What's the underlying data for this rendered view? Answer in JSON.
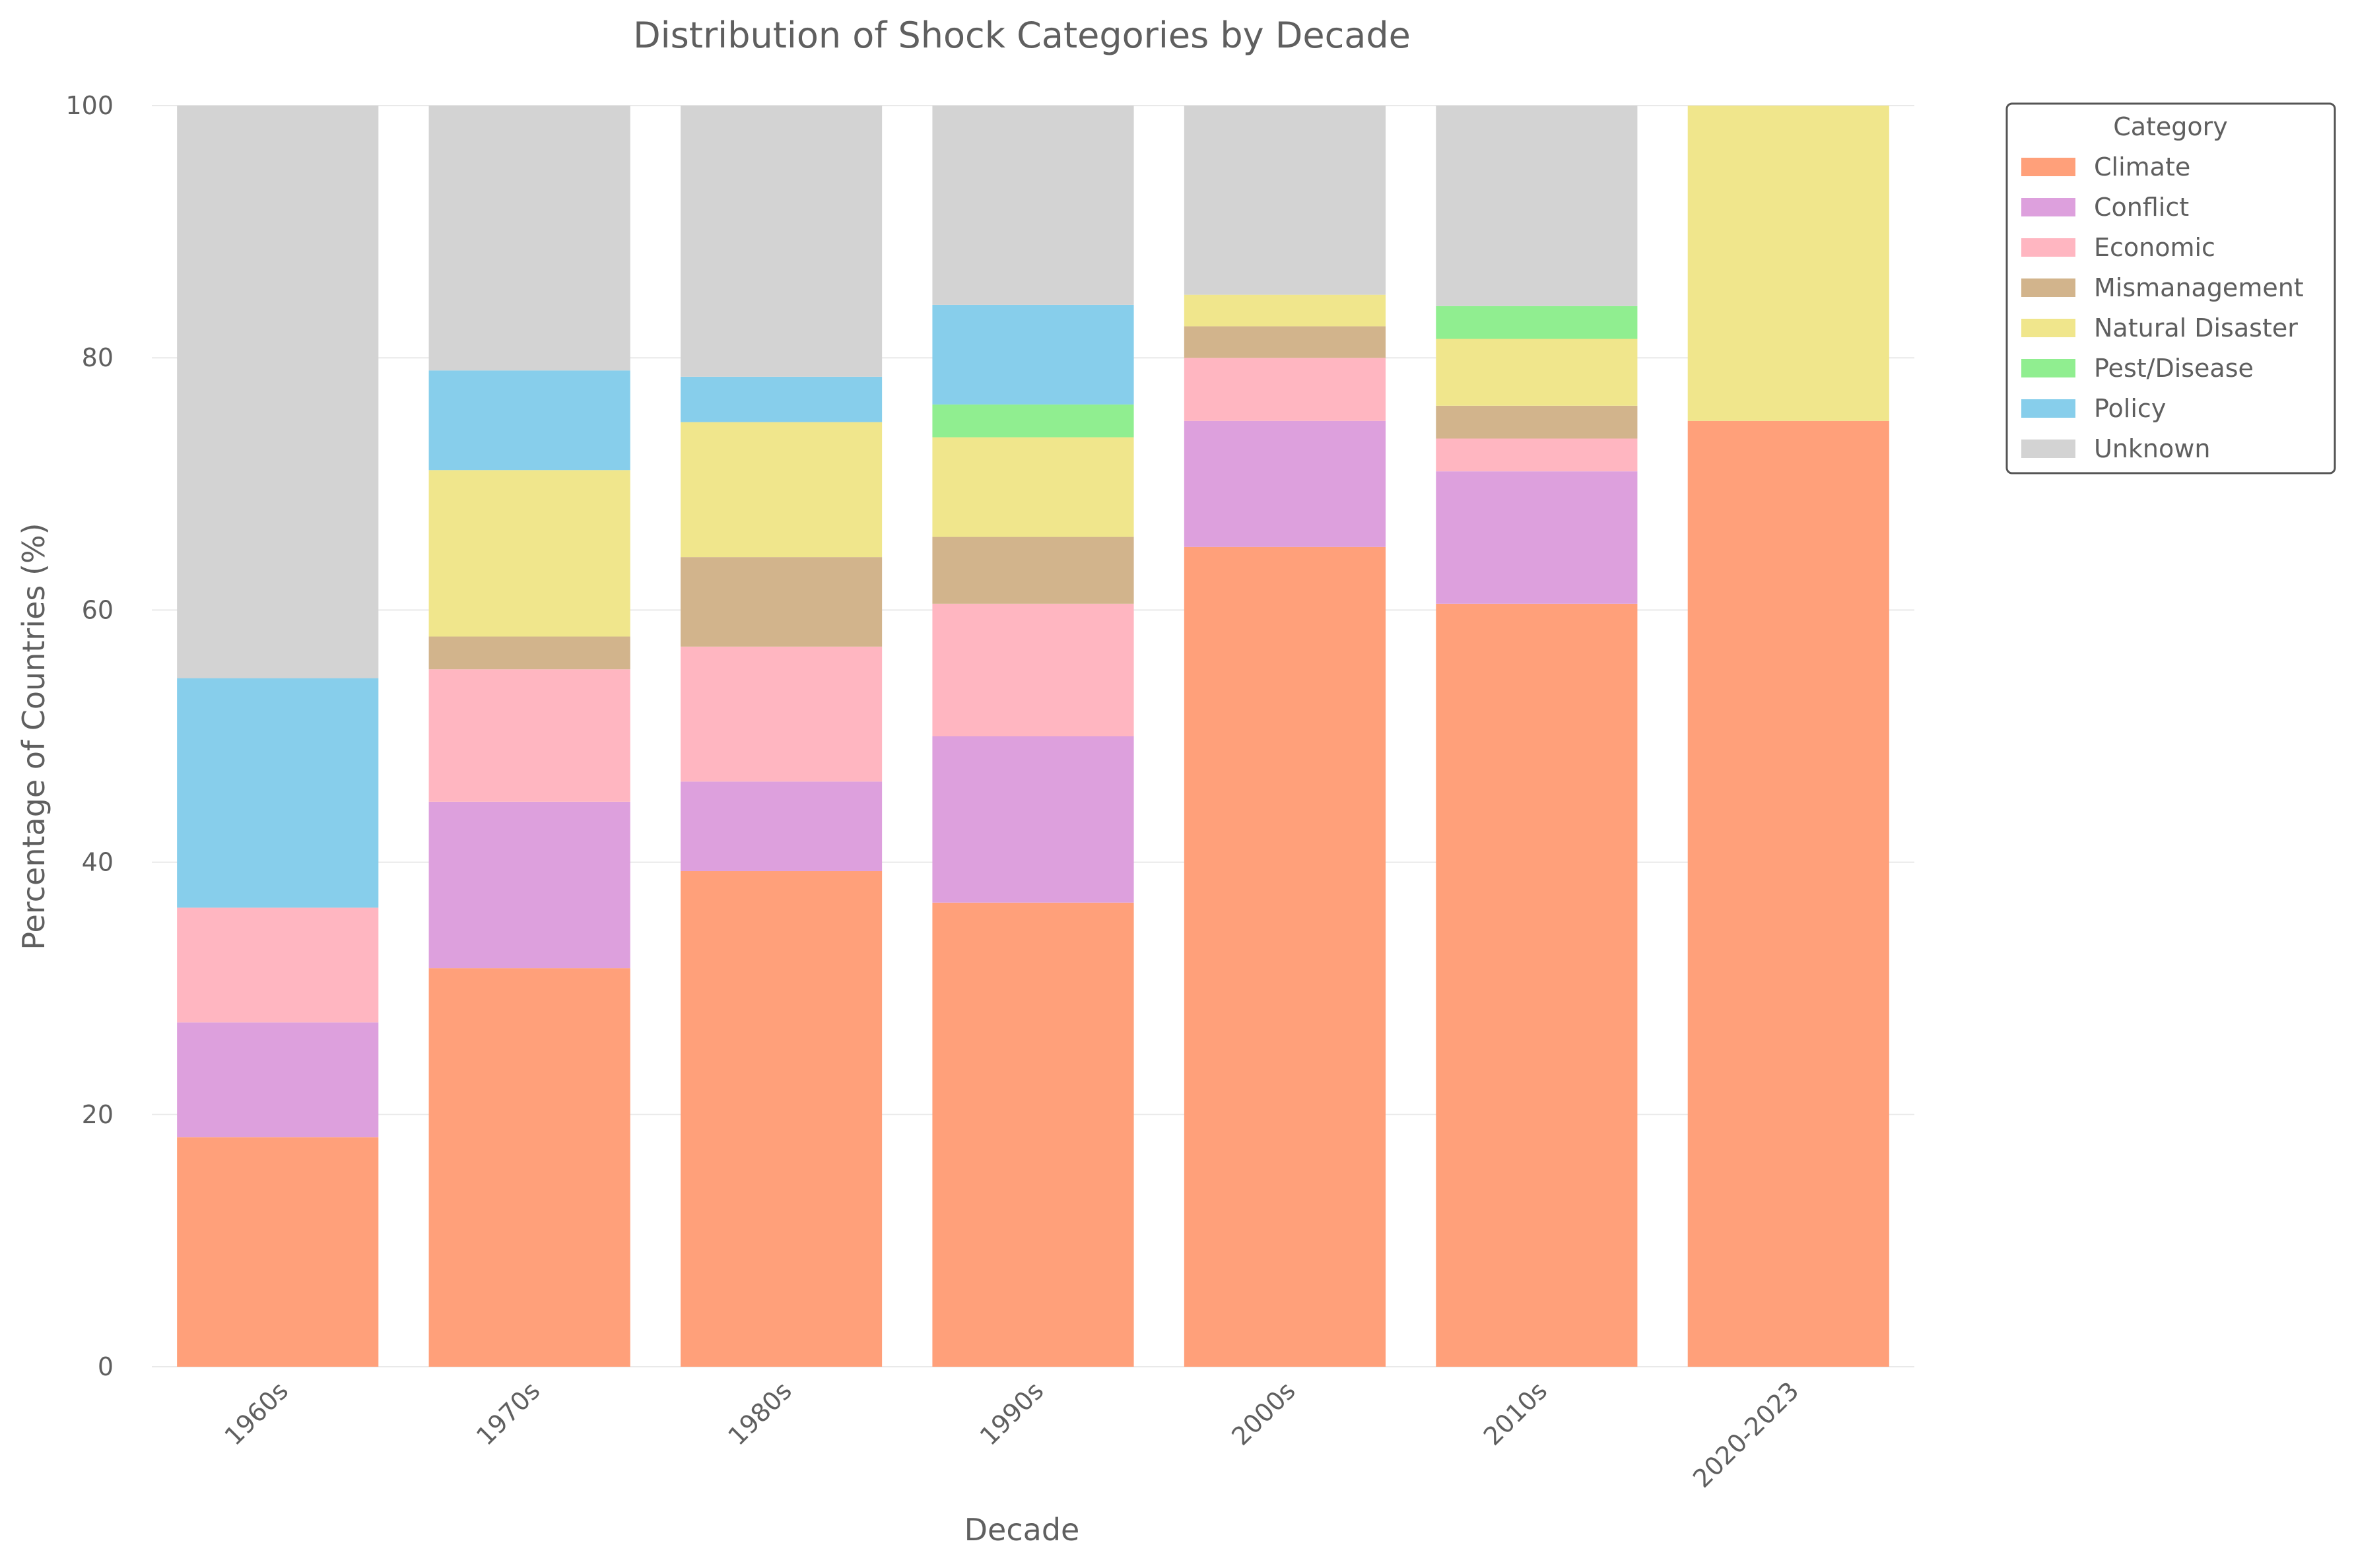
{
  "chart_data": {
    "type": "bar",
    "stacked": true,
    "title": "Distribution of Shock Categories by Decade",
    "xlabel": "Decade",
    "ylabel": "Percentage of Countries (%)",
    "ylim": [
      0,
      100
    ],
    "yticks": [
      0,
      20,
      40,
      60,
      80,
      100
    ],
    "grid": true,
    "legend_title": "Category",
    "legend_position": "right",
    "categories": [
      "1960s",
      "1970s",
      "1980s",
      "1990s",
      "2000s",
      "2010s",
      "2020-2023"
    ],
    "series": [
      {
        "name": "Climate",
        "color": "#ffa07a",
        "values": [
          18.2,
          31.6,
          39.3,
          36.8,
          65.0,
          60.5,
          75.0
        ]
      },
      {
        "name": "Conflict",
        "color": "#dda0dd",
        "values": [
          9.1,
          13.2,
          7.1,
          13.2,
          10.0,
          10.5,
          0
        ]
      },
      {
        "name": "Economic",
        "color": "#ffb6c1",
        "values": [
          9.1,
          10.5,
          10.7,
          10.5,
          5.0,
          2.6,
          0
        ]
      },
      {
        "name": "Mismanagement",
        "color": "#d2b48c",
        "values": [
          0,
          2.6,
          7.1,
          5.3,
          2.5,
          2.6,
          0
        ]
      },
      {
        "name": "Natural Disaster",
        "color": "#f0e68c",
        "values": [
          0,
          13.2,
          10.7,
          7.9,
          2.5,
          5.3,
          25.0
        ]
      },
      {
        "name": "Pest/Disease",
        "color": "#90ee90",
        "values": [
          0,
          0,
          0,
          2.6,
          0,
          2.6,
          0
        ]
      },
      {
        "name": "Policy",
        "color": "#87ceeb",
        "values": [
          18.2,
          7.9,
          3.6,
          7.9,
          0,
          0,
          0
        ]
      },
      {
        "name": "Unknown",
        "color": "#d3d3d3",
        "values": [
          45.4,
          21.0,
          21.5,
          15.8,
          15.0,
          15.9,
          0
        ]
      }
    ]
  }
}
